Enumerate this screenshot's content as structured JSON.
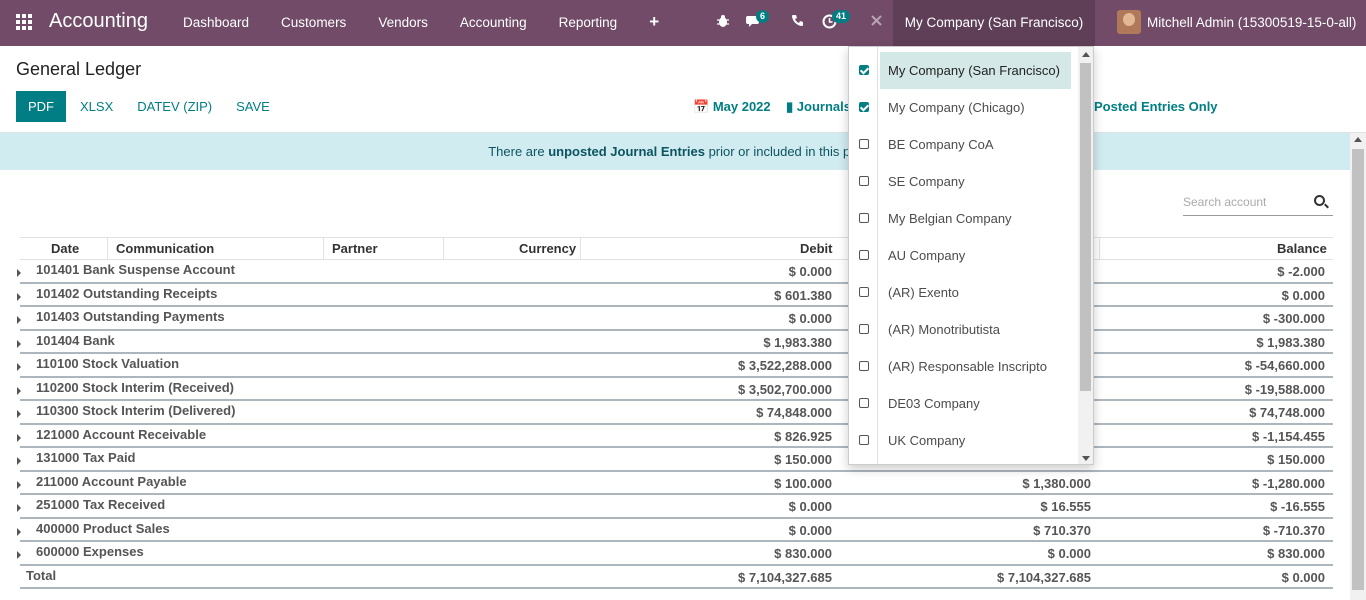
{
  "navbar": {
    "brand": "Accounting",
    "menu": [
      "Dashboard",
      "Customers",
      "Vendors",
      "Accounting",
      "Reporting",
      "+"
    ],
    "messages_count": "6",
    "activities_count": "41",
    "current_company": "My Company (San Francisco)",
    "user": "Mitchell Admin (15300519-15-0-all)",
    "icons": [
      "apps-icon",
      "bug-icon",
      "chat-icon",
      "phone-icon",
      "clock-icon",
      "close-icon"
    ]
  },
  "control_panel": {
    "title": "General Ledger",
    "buttons": [
      "PDF",
      "XLSX",
      "DATEV (ZIP)",
      "SAVE"
    ],
    "filter_date": "May 2022",
    "filter_journals": "Journals",
    "filter_posted": "Posted Entries Only"
  },
  "warning": {
    "prefix": "There are ",
    "bold": "unposted Journal Entries",
    "suffix": " prior or included in this per"
  },
  "search": {
    "placeholder": "Search account"
  },
  "table": {
    "columns": [
      "Date",
      "Communication",
      "Partner",
      "Currency",
      "Debit",
      "Balance"
    ],
    "rows": [
      {
        "account": "101401 Bank Suspense Account",
        "debit": "$ 0.000",
        "credit": "",
        "balance": "$ -2.000"
      },
      {
        "account": "101402 Outstanding Receipts",
        "debit": "$ 601.380",
        "credit": "",
        "balance": "$ 0.000"
      },
      {
        "account": "101403 Outstanding Payments",
        "debit": "$ 0.000",
        "credit": "",
        "balance": "$ -300.000"
      },
      {
        "account": "101404 Bank",
        "debit": "$ 1,983.380",
        "credit": "",
        "balance": "$ 1,983.380"
      },
      {
        "account": "110100 Stock Valuation",
        "debit": "$ 3,522,288.000",
        "credit": "",
        "balance": "$ -54,660.000"
      },
      {
        "account": "110200 Stock Interim (Received)",
        "debit": "$ 3,502,700.000",
        "credit": "",
        "balance": "$ -19,588.000"
      },
      {
        "account": "110300 Stock Interim (Delivered)",
        "debit": "$ 74,848.000",
        "credit": "",
        "balance": "$ 74,748.000"
      },
      {
        "account": "121000 Account Receivable",
        "debit": "$ 826.925",
        "credit": "",
        "balance": "$ -1,154.455"
      },
      {
        "account": "131000 Tax Paid",
        "debit": "$ 150.000",
        "credit": "",
        "balance": "$ 150.000"
      },
      {
        "account": "211000 Account Payable",
        "debit": "$ 100.000",
        "credit": "$ 1,380.000",
        "balance": "$ -1,280.000"
      },
      {
        "account": "251000 Tax Received",
        "debit": "$ 0.000",
        "credit": "$ 16.555",
        "balance": "$ -16.555"
      },
      {
        "account": "400000 Product Sales",
        "debit": "$ 0.000",
        "credit": "$ 710.370",
        "balance": "$ -710.370"
      },
      {
        "account": "600000 Expenses",
        "debit": "$ 830.000",
        "credit": "$ 0.000",
        "balance": "$ 830.000"
      }
    ],
    "total": {
      "label": "Total",
      "debit": "$ 7,104,327.685",
      "credit": "$ 7,104,327.685",
      "balance": "$ 0.000"
    }
  },
  "company_dropdown": {
    "items": [
      {
        "label": "My Company (San Francisco)",
        "checked": true,
        "active": true
      },
      {
        "label": "My Company (Chicago)",
        "checked": true,
        "active": false
      },
      {
        "label": "BE Company CoA",
        "checked": false,
        "active": false
      },
      {
        "label": "SE Company",
        "checked": false,
        "active": false
      },
      {
        "label": "My Belgian Company",
        "checked": false,
        "active": false
      },
      {
        "label": "AU Company",
        "checked": false,
        "active": false
      },
      {
        "label": "(AR) Exento",
        "checked": false,
        "active": false
      },
      {
        "label": "(AR) Monotributista",
        "checked": false,
        "active": false
      },
      {
        "label": "(AR) Responsable Inscripto",
        "checked": false,
        "active": false
      },
      {
        "label": "DE03 Company",
        "checked": false,
        "active": false
      },
      {
        "label": "UK Company",
        "checked": false,
        "active": false
      }
    ]
  },
  "colors": {
    "navbar": "#714b67",
    "accent": "#017e84",
    "warning_bg": "#d1ecf1"
  }
}
